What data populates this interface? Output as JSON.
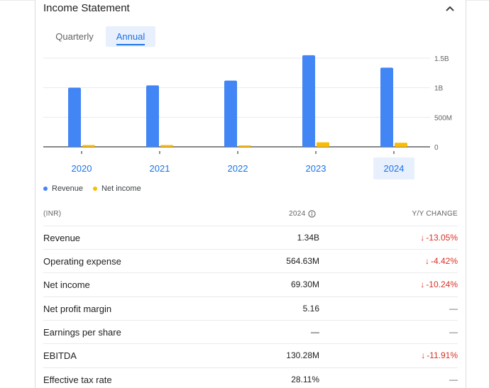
{
  "header": {
    "title": "Income Statement"
  },
  "tabs": [
    {
      "label": "Quarterly"
    },
    {
      "label": "Annual"
    }
  ],
  "active_tab": "Annual",
  "years": [
    "2020",
    "2021",
    "2022",
    "2023",
    "2024"
  ],
  "selected_year": "2024",
  "legend": {
    "revenue": "Revenue",
    "net_income": "Net income"
  },
  "colors": {
    "revenue": "#4285f4",
    "net_income": "#fbbc04",
    "accent": "#1a73e8",
    "negative": "#d93025"
  },
  "chart_data": {
    "type": "bar",
    "categories": [
      "2020",
      "2021",
      "2022",
      "2023",
      "2024"
    ],
    "series": [
      {
        "name": "Revenue",
        "values": [
          1000000000.0,
          1040000000.0,
          1120000000.0,
          1550000000.0,
          1340000000.0
        ]
      },
      {
        "name": "Net income",
        "values": [
          30000000.0,
          30000000.0,
          10000000.0,
          77000000.0,
          69300000.0
        ]
      }
    ],
    "ylim": [
      0,
      1500000000.0
    ],
    "yticks": [
      {
        "value": 0,
        "label": "0"
      },
      {
        "value": 500000000,
        "label": "500M"
      },
      {
        "value": 1000000000,
        "label": "1B"
      },
      {
        "value": 1500000000,
        "label": "1.5B"
      }
    ],
    "grid": true
  },
  "table": {
    "headers": {
      "label": "(INR)",
      "year": "2024",
      "change": "Y/Y CHANGE"
    },
    "rows": [
      {
        "label": "Revenue",
        "value": "1.34B",
        "change": "-13.05%",
        "direction": "down"
      },
      {
        "label": "Operating expense",
        "value": "564.63M",
        "change": "-4.42%",
        "direction": "down"
      },
      {
        "label": "Net income",
        "value": "69.30M",
        "change": "-10.24%",
        "direction": "down"
      },
      {
        "label": "Net profit margin",
        "value": "5.16",
        "change": "—",
        "direction": "none"
      },
      {
        "label": "Earnings per share",
        "value": "—",
        "change": "—",
        "direction": "none"
      },
      {
        "label": "EBITDA",
        "value": "130.28M",
        "change": "-11.91%",
        "direction": "down"
      },
      {
        "label": "Effective tax rate",
        "value": "28.11%",
        "change": "—",
        "direction": "none"
      }
    ]
  }
}
